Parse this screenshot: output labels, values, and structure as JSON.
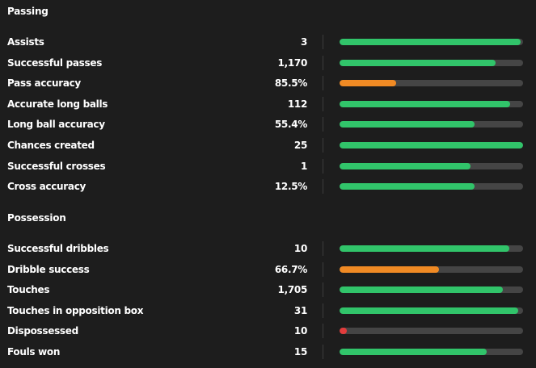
{
  "colors": {
    "good": "#31c46a",
    "average": "#f08a24",
    "poor": "#e23c3c"
  },
  "sections": [
    {
      "title": "Passing",
      "stats": [
        {
          "label": "Assists",
          "value": "3",
          "fill_pct": 98.5,
          "level": "good"
        },
        {
          "label": "Successful passes",
          "value": "1,170",
          "fill_pct": 85,
          "level": "good"
        },
        {
          "label": "Pass accuracy",
          "value": "85.5%",
          "fill_pct": 31,
          "level": "average"
        },
        {
          "label": "Accurate long balls",
          "value": "112",
          "fill_pct": 93,
          "level": "good"
        },
        {
          "label": "Long ball accuracy",
          "value": "55.4%",
          "fill_pct": 73.5,
          "level": "good"
        },
        {
          "label": "Chances created",
          "value": "25",
          "fill_pct": 100,
          "level": "good"
        },
        {
          "label": "Successful crosses",
          "value": "1",
          "fill_pct": 71.5,
          "level": "good"
        },
        {
          "label": "Cross accuracy",
          "value": "12.5%",
          "fill_pct": 73.5,
          "level": "good"
        }
      ]
    },
    {
      "title": "Possession",
      "stats": [
        {
          "label": "Successful dribbles",
          "value": "10",
          "fill_pct": 92.5,
          "level": "good"
        },
        {
          "label": "Dribble success",
          "value": "66.7%",
          "fill_pct": 54,
          "level": "average"
        },
        {
          "label": "Touches",
          "value": "1,705",
          "fill_pct": 89,
          "level": "good"
        },
        {
          "label": "Touches in opposition box",
          "value": "31",
          "fill_pct": 97.5,
          "level": "good"
        },
        {
          "label": "Dispossessed",
          "value": "10",
          "fill_pct": 4,
          "level": "poor"
        },
        {
          "label": "Fouls won",
          "value": "15",
          "fill_pct": 80,
          "level": "good"
        }
      ]
    }
  ]
}
